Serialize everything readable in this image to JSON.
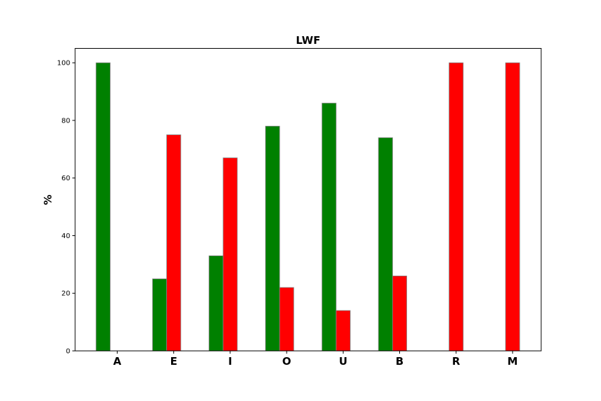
{
  "chart_data": {
    "type": "bar",
    "title": "LWF",
    "xlabel": "",
    "ylabel": "%",
    "categories": [
      "A",
      "E",
      "I",
      "O",
      "U",
      "B",
      "R",
      "M"
    ],
    "series": [
      {
        "values": [
          100,
          25,
          33,
          78,
          86,
          74,
          0,
          0
        ],
        "color": "#008000"
      },
      {
        "values": [
          0,
          75,
          67,
          22,
          14,
          26,
          100,
          100
        ],
        "color": "#ff0000"
      }
    ],
    "ylim": [
      0,
      105
    ],
    "yticks": [
      "0",
      "20",
      "40",
      "60",
      "80",
      "100"
    ],
    "grid": false,
    "bar_edge_color": "#808080"
  }
}
